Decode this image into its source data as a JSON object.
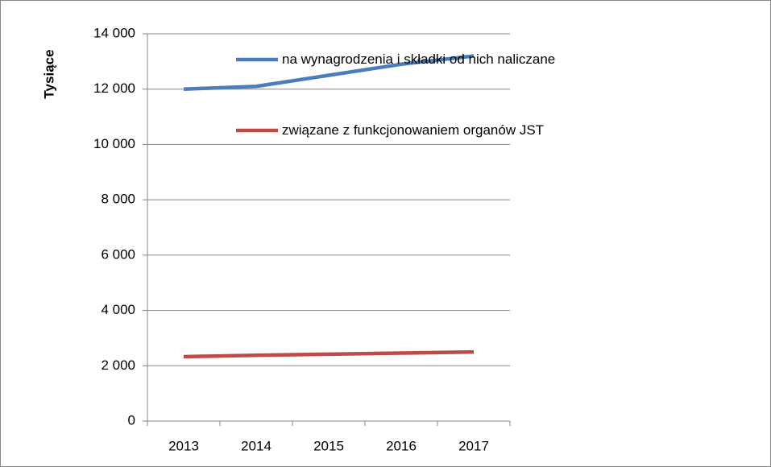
{
  "chart_data": {
    "type": "line",
    "y_label": "Tysiące",
    "categories": [
      "2013",
      "2014",
      "2015",
      "2016",
      "2017"
    ],
    "series": [
      {
        "name": "na wynagrodzenia i składki od nich naliczane",
        "color": "#4a7ebb",
        "values": [
          12000,
          12100,
          12500,
          12900,
          13200
        ]
      },
      {
        "name": "związane z funkcjonowaniem organów JST",
        "color": "#be4b48",
        "values": [
          2330,
          2380,
          2420,
          2460,
          2500
        ]
      }
    ],
    "ylim": [
      0,
      14000
    ],
    "yticks": [
      {
        "value": 0,
        "label": "0"
      },
      {
        "value": 2000,
        "label": "2 000"
      },
      {
        "value": 4000,
        "label": "4 000"
      },
      {
        "value": 6000,
        "label": "6 000"
      },
      {
        "value": 8000,
        "label": "8 000"
      },
      {
        "value": 10000,
        "label": "10 000"
      },
      {
        "value": 12000,
        "label": "12 000"
      },
      {
        "value": 14000,
        "label": "14 000"
      }
    ],
    "grid": true,
    "legend": "top"
  }
}
